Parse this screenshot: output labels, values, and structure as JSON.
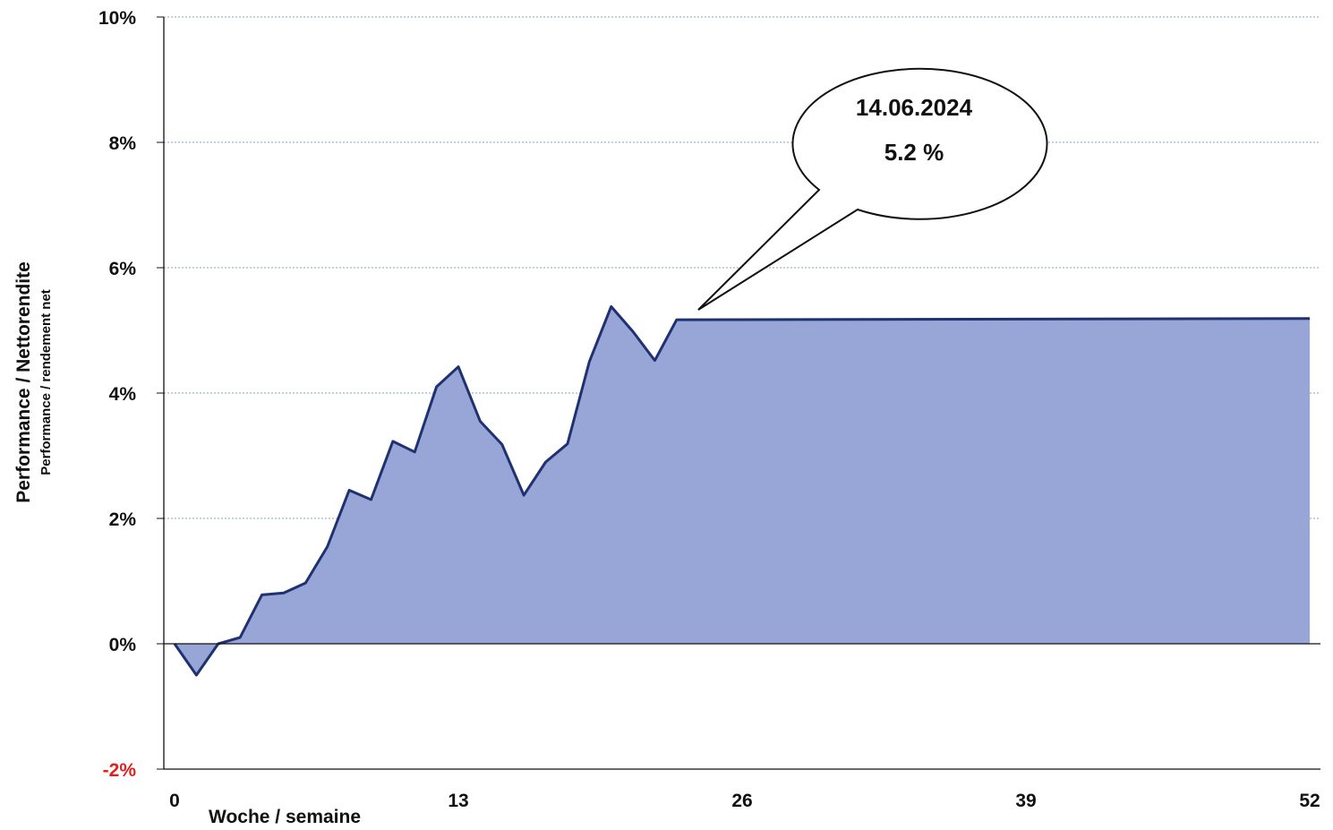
{
  "chart_data": {
    "type": "area",
    "xlabel": "Woche / semaine",
    "ylabel": "Performance / Nettorendite",
    "ylabel_sub": "Performance / rendement net",
    "xlim": [
      0,
      52
    ],
    "ylim": [
      -2,
      10
    ],
    "x_ticks": [
      "0",
      "13",
      "26",
      "39",
      "52"
    ],
    "y_ticks": [
      "10%",
      "8%",
      "6%",
      "4%",
      "2%",
      "0%",
      "-2%"
    ],
    "grid": "horizontal dotted",
    "colors": {
      "fill": "#97A6D6",
      "line": "#1F3170",
      "grid": "#8A9CC8",
      "negative_tick": "#E02020"
    },
    "x": [
      0,
      1,
      2,
      3,
      4,
      5,
      6,
      7,
      8,
      9,
      10,
      11,
      12,
      13,
      14,
      15,
      16,
      17,
      18,
      19,
      20,
      21,
      22,
      23,
      52
    ],
    "values": [
      0,
      -0.5,
      0,
      0.1,
      0.78,
      0.81,
      0.97,
      1.55,
      2.45,
      2.3,
      3.23,
      3.06,
      4.1,
      4.42,
      3.55,
      3.18,
      2.37,
      2.9,
      3.19,
      4.5,
      5.38,
      4.98,
      4.52,
      5.17,
      5.19
    ],
    "annotation": {
      "date": "14.06.2024",
      "value": "5.2 %",
      "at_x": 24,
      "at_y": 5.19
    }
  }
}
